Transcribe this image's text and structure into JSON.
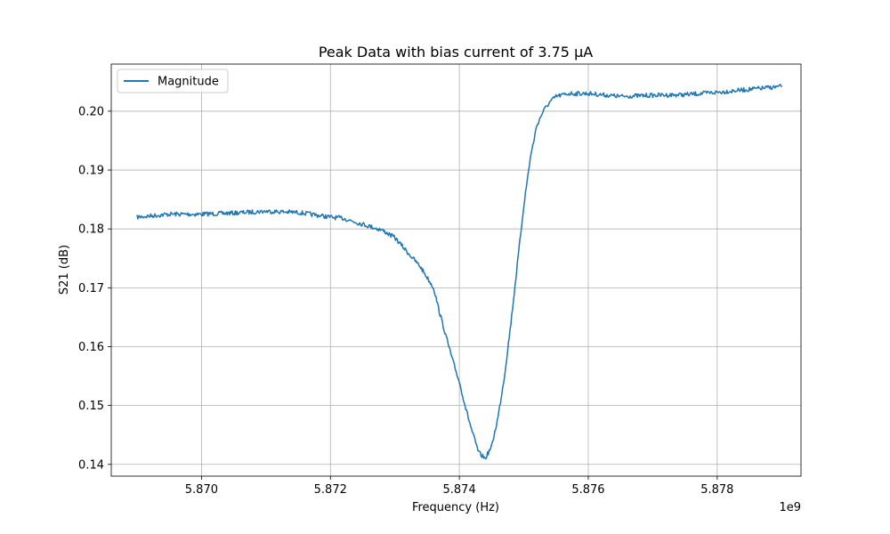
{
  "chart_data": {
    "type": "line",
    "title": "Peak Data with bias current of 3.75 μA",
    "xlabel": "Frequency (Hz)",
    "ylabel": "S21 (dB)",
    "x_offset_label": "1e9",
    "xlim": [
      5.8686,
      5.8793
    ],
    "ylim": [
      0.138,
      0.208
    ],
    "x_ticks": [
      5.87,
      5.872,
      5.874,
      5.876,
      5.878
    ],
    "x_tick_labels": [
      "5.870",
      "5.872",
      "5.874",
      "5.876",
      "5.878"
    ],
    "y_ticks": [
      0.14,
      0.15,
      0.16,
      0.17,
      0.18,
      0.19,
      0.2
    ],
    "y_tick_labels": [
      "0.14",
      "0.15",
      "0.16",
      "0.17",
      "0.18",
      "0.19",
      "0.20"
    ],
    "grid": true,
    "legend_position": "top-left",
    "series": [
      {
        "name": "Magnitude",
        "color": "#1f77b4",
        "x": [
          5.869,
          5.8695,
          5.87,
          5.8705,
          5.871,
          5.8715,
          5.872,
          5.8722,
          5.8725,
          5.8728,
          5.873,
          5.8732,
          5.8734,
          5.8736,
          5.8737,
          5.8738,
          5.8739,
          5.874,
          5.8741,
          5.8742,
          5.8743,
          5.8744,
          5.8745,
          5.8746,
          5.8747,
          5.8748,
          5.8749,
          5.875,
          5.8751,
          5.8752,
          5.8753,
          5.8754,
          5.8755,
          5.8757,
          5.876,
          5.8765,
          5.877,
          5.8775,
          5.878,
          5.8785,
          5.879
        ],
        "y": [
          0.182,
          0.1825,
          0.1825,
          0.1827,
          0.183,
          0.1828,
          0.182,
          0.1818,
          0.1808,
          0.1798,
          0.1785,
          0.176,
          0.1735,
          0.17,
          0.1655,
          0.1615,
          0.1575,
          0.154,
          0.1495,
          0.1455,
          0.142,
          0.141,
          0.143,
          0.148,
          0.155,
          0.164,
          0.174,
          0.184,
          0.192,
          0.1975,
          0.2,
          0.2015,
          0.2025,
          0.203,
          0.203,
          0.2025,
          0.2027,
          0.2028,
          0.2032,
          0.2037,
          0.2042
        ]
      }
    ]
  }
}
